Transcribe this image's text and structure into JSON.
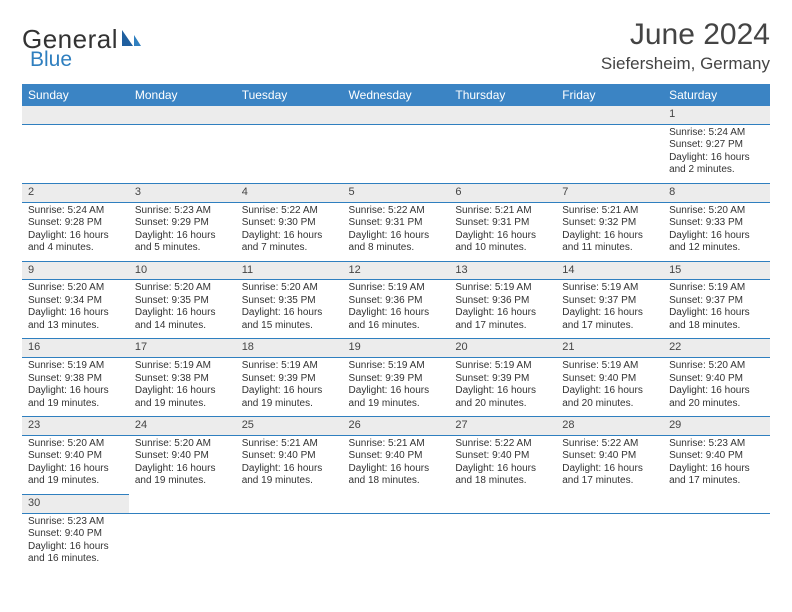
{
  "brand": {
    "part1": "General",
    "part2": "Blue",
    "color_text": "#333333",
    "color_blue": "#2f7fbf"
  },
  "header": {
    "title": "June 2024",
    "location": "Siefersheim, Germany",
    "title_color": "#444444",
    "title_fontsize": 30,
    "location_fontsize": 17
  },
  "calendar": {
    "header_bg": "#3b84c4",
    "header_fg": "#ffffff",
    "daynum_bg": "#ececec",
    "border_color": "#2f7fbf",
    "cell_fontsize": 10,
    "days": [
      "Sunday",
      "Monday",
      "Tuesday",
      "Wednesday",
      "Thursday",
      "Friday",
      "Saturday"
    ],
    "weeks": [
      [
        null,
        null,
        null,
        null,
        null,
        null,
        {
          "n": "1",
          "sunrise": "Sunrise: 5:24 AM",
          "sunset": "Sunset: 9:27 PM",
          "daylight": "Daylight: 16 hours and 2 minutes."
        }
      ],
      [
        {
          "n": "2",
          "sunrise": "Sunrise: 5:24 AM",
          "sunset": "Sunset: 9:28 PM",
          "daylight": "Daylight: 16 hours and 4 minutes."
        },
        {
          "n": "3",
          "sunrise": "Sunrise: 5:23 AM",
          "sunset": "Sunset: 9:29 PM",
          "daylight": "Daylight: 16 hours and 5 minutes."
        },
        {
          "n": "4",
          "sunrise": "Sunrise: 5:22 AM",
          "sunset": "Sunset: 9:30 PM",
          "daylight": "Daylight: 16 hours and 7 minutes."
        },
        {
          "n": "5",
          "sunrise": "Sunrise: 5:22 AM",
          "sunset": "Sunset: 9:31 PM",
          "daylight": "Daylight: 16 hours and 8 minutes."
        },
        {
          "n": "6",
          "sunrise": "Sunrise: 5:21 AM",
          "sunset": "Sunset: 9:31 PM",
          "daylight": "Daylight: 16 hours and 10 minutes."
        },
        {
          "n": "7",
          "sunrise": "Sunrise: 5:21 AM",
          "sunset": "Sunset: 9:32 PM",
          "daylight": "Daylight: 16 hours and 11 minutes."
        },
        {
          "n": "8",
          "sunrise": "Sunrise: 5:20 AM",
          "sunset": "Sunset: 9:33 PM",
          "daylight": "Daylight: 16 hours and 12 minutes."
        }
      ],
      [
        {
          "n": "9",
          "sunrise": "Sunrise: 5:20 AM",
          "sunset": "Sunset: 9:34 PM",
          "daylight": "Daylight: 16 hours and 13 minutes."
        },
        {
          "n": "10",
          "sunrise": "Sunrise: 5:20 AM",
          "sunset": "Sunset: 9:35 PM",
          "daylight": "Daylight: 16 hours and 14 minutes."
        },
        {
          "n": "11",
          "sunrise": "Sunrise: 5:20 AM",
          "sunset": "Sunset: 9:35 PM",
          "daylight": "Daylight: 16 hours and 15 minutes."
        },
        {
          "n": "12",
          "sunrise": "Sunrise: 5:19 AM",
          "sunset": "Sunset: 9:36 PM",
          "daylight": "Daylight: 16 hours and 16 minutes."
        },
        {
          "n": "13",
          "sunrise": "Sunrise: 5:19 AM",
          "sunset": "Sunset: 9:36 PM",
          "daylight": "Daylight: 16 hours and 17 minutes."
        },
        {
          "n": "14",
          "sunrise": "Sunrise: 5:19 AM",
          "sunset": "Sunset: 9:37 PM",
          "daylight": "Daylight: 16 hours and 17 minutes."
        },
        {
          "n": "15",
          "sunrise": "Sunrise: 5:19 AM",
          "sunset": "Sunset: 9:37 PM",
          "daylight": "Daylight: 16 hours and 18 minutes."
        }
      ],
      [
        {
          "n": "16",
          "sunrise": "Sunrise: 5:19 AM",
          "sunset": "Sunset: 9:38 PM",
          "daylight": "Daylight: 16 hours and 19 minutes."
        },
        {
          "n": "17",
          "sunrise": "Sunrise: 5:19 AM",
          "sunset": "Sunset: 9:38 PM",
          "daylight": "Daylight: 16 hours and 19 minutes."
        },
        {
          "n": "18",
          "sunrise": "Sunrise: 5:19 AM",
          "sunset": "Sunset: 9:39 PM",
          "daylight": "Daylight: 16 hours and 19 minutes."
        },
        {
          "n": "19",
          "sunrise": "Sunrise: 5:19 AM",
          "sunset": "Sunset: 9:39 PM",
          "daylight": "Daylight: 16 hours and 19 minutes."
        },
        {
          "n": "20",
          "sunrise": "Sunrise: 5:19 AM",
          "sunset": "Sunset: 9:39 PM",
          "daylight": "Daylight: 16 hours and 20 minutes."
        },
        {
          "n": "21",
          "sunrise": "Sunrise: 5:19 AM",
          "sunset": "Sunset: 9:40 PM",
          "daylight": "Daylight: 16 hours and 20 minutes."
        },
        {
          "n": "22",
          "sunrise": "Sunrise: 5:20 AM",
          "sunset": "Sunset: 9:40 PM",
          "daylight": "Daylight: 16 hours and 20 minutes."
        }
      ],
      [
        {
          "n": "23",
          "sunrise": "Sunrise: 5:20 AM",
          "sunset": "Sunset: 9:40 PM",
          "daylight": "Daylight: 16 hours and 19 minutes."
        },
        {
          "n": "24",
          "sunrise": "Sunrise: 5:20 AM",
          "sunset": "Sunset: 9:40 PM",
          "daylight": "Daylight: 16 hours and 19 minutes."
        },
        {
          "n": "25",
          "sunrise": "Sunrise: 5:21 AM",
          "sunset": "Sunset: 9:40 PM",
          "daylight": "Daylight: 16 hours and 19 minutes."
        },
        {
          "n": "26",
          "sunrise": "Sunrise: 5:21 AM",
          "sunset": "Sunset: 9:40 PM",
          "daylight": "Daylight: 16 hours and 18 minutes."
        },
        {
          "n": "27",
          "sunrise": "Sunrise: 5:22 AM",
          "sunset": "Sunset: 9:40 PM",
          "daylight": "Daylight: 16 hours and 18 minutes."
        },
        {
          "n": "28",
          "sunrise": "Sunrise: 5:22 AM",
          "sunset": "Sunset: 9:40 PM",
          "daylight": "Daylight: 16 hours and 17 minutes."
        },
        {
          "n": "29",
          "sunrise": "Sunrise: 5:23 AM",
          "sunset": "Sunset: 9:40 PM",
          "daylight": "Daylight: 16 hours and 17 minutes."
        }
      ],
      [
        {
          "n": "30",
          "sunrise": "Sunrise: 5:23 AM",
          "sunset": "Sunset: 9:40 PM",
          "daylight": "Daylight: 16 hours and 16 minutes."
        },
        null,
        null,
        null,
        null,
        null,
        null
      ]
    ]
  }
}
